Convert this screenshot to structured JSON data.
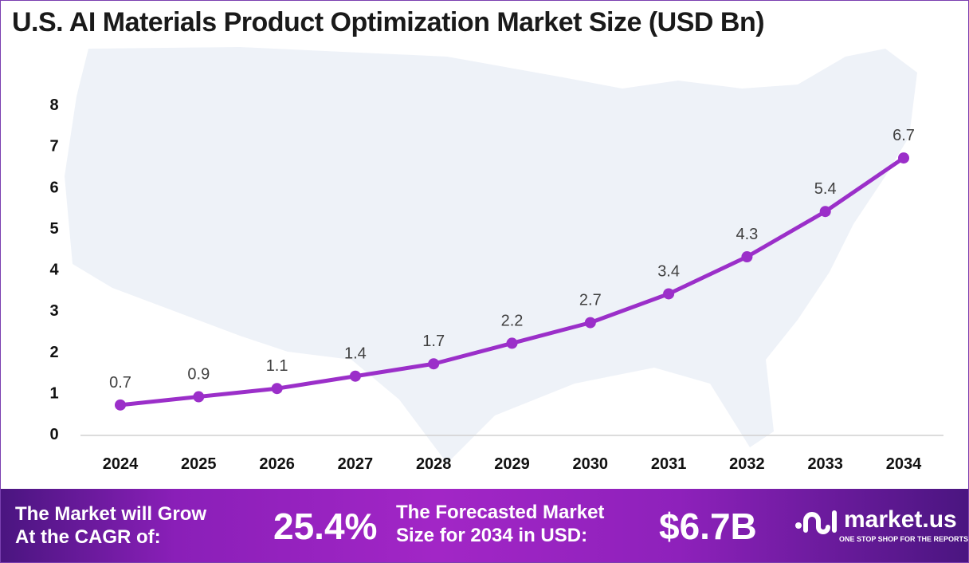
{
  "title": "U.S. AI Materials Product Optimization Market Size (USD Bn)",
  "chart_data": {
    "type": "line",
    "title": "U.S. AI Materials Product Optimization Market Size (USD Bn)",
    "categories": [
      "2024",
      "2025",
      "2026",
      "2027",
      "2028",
      "2029",
      "2030",
      "2031",
      "2032",
      "2033",
      "2034"
    ],
    "values": [
      0.7,
      0.9,
      1.1,
      1.4,
      1.7,
      2.2,
      2.7,
      3.4,
      4.3,
      5.4,
      6.7
    ],
    "data_labels": [
      "0.7",
      "0.9",
      "1.1",
      "1.4",
      "1.7",
      "2.2",
      "2.7",
      "3.4",
      "4.3",
      "5.4",
      "6.7"
    ],
    "yticks": [
      "0",
      "1",
      "2",
      "3",
      "4",
      "5",
      "6",
      "7",
      "8"
    ],
    "ylim": [
      0,
      8
    ],
    "grid": false,
    "line_color": "#9b2fc9"
  },
  "footer": {
    "cagr_text_1": "The Market will Grow",
    "cagr_text_2": "At the CAGR of:",
    "cagr_value": "25.4%",
    "forecast_text_1": "The Forecasted Market",
    "forecast_text_2": "Size for 2034 in USD:",
    "forecast_value": "$6.7B",
    "logo_name": "market.us",
    "logo_tagline": "ONE STOP SHOP FOR THE REPORTS"
  }
}
